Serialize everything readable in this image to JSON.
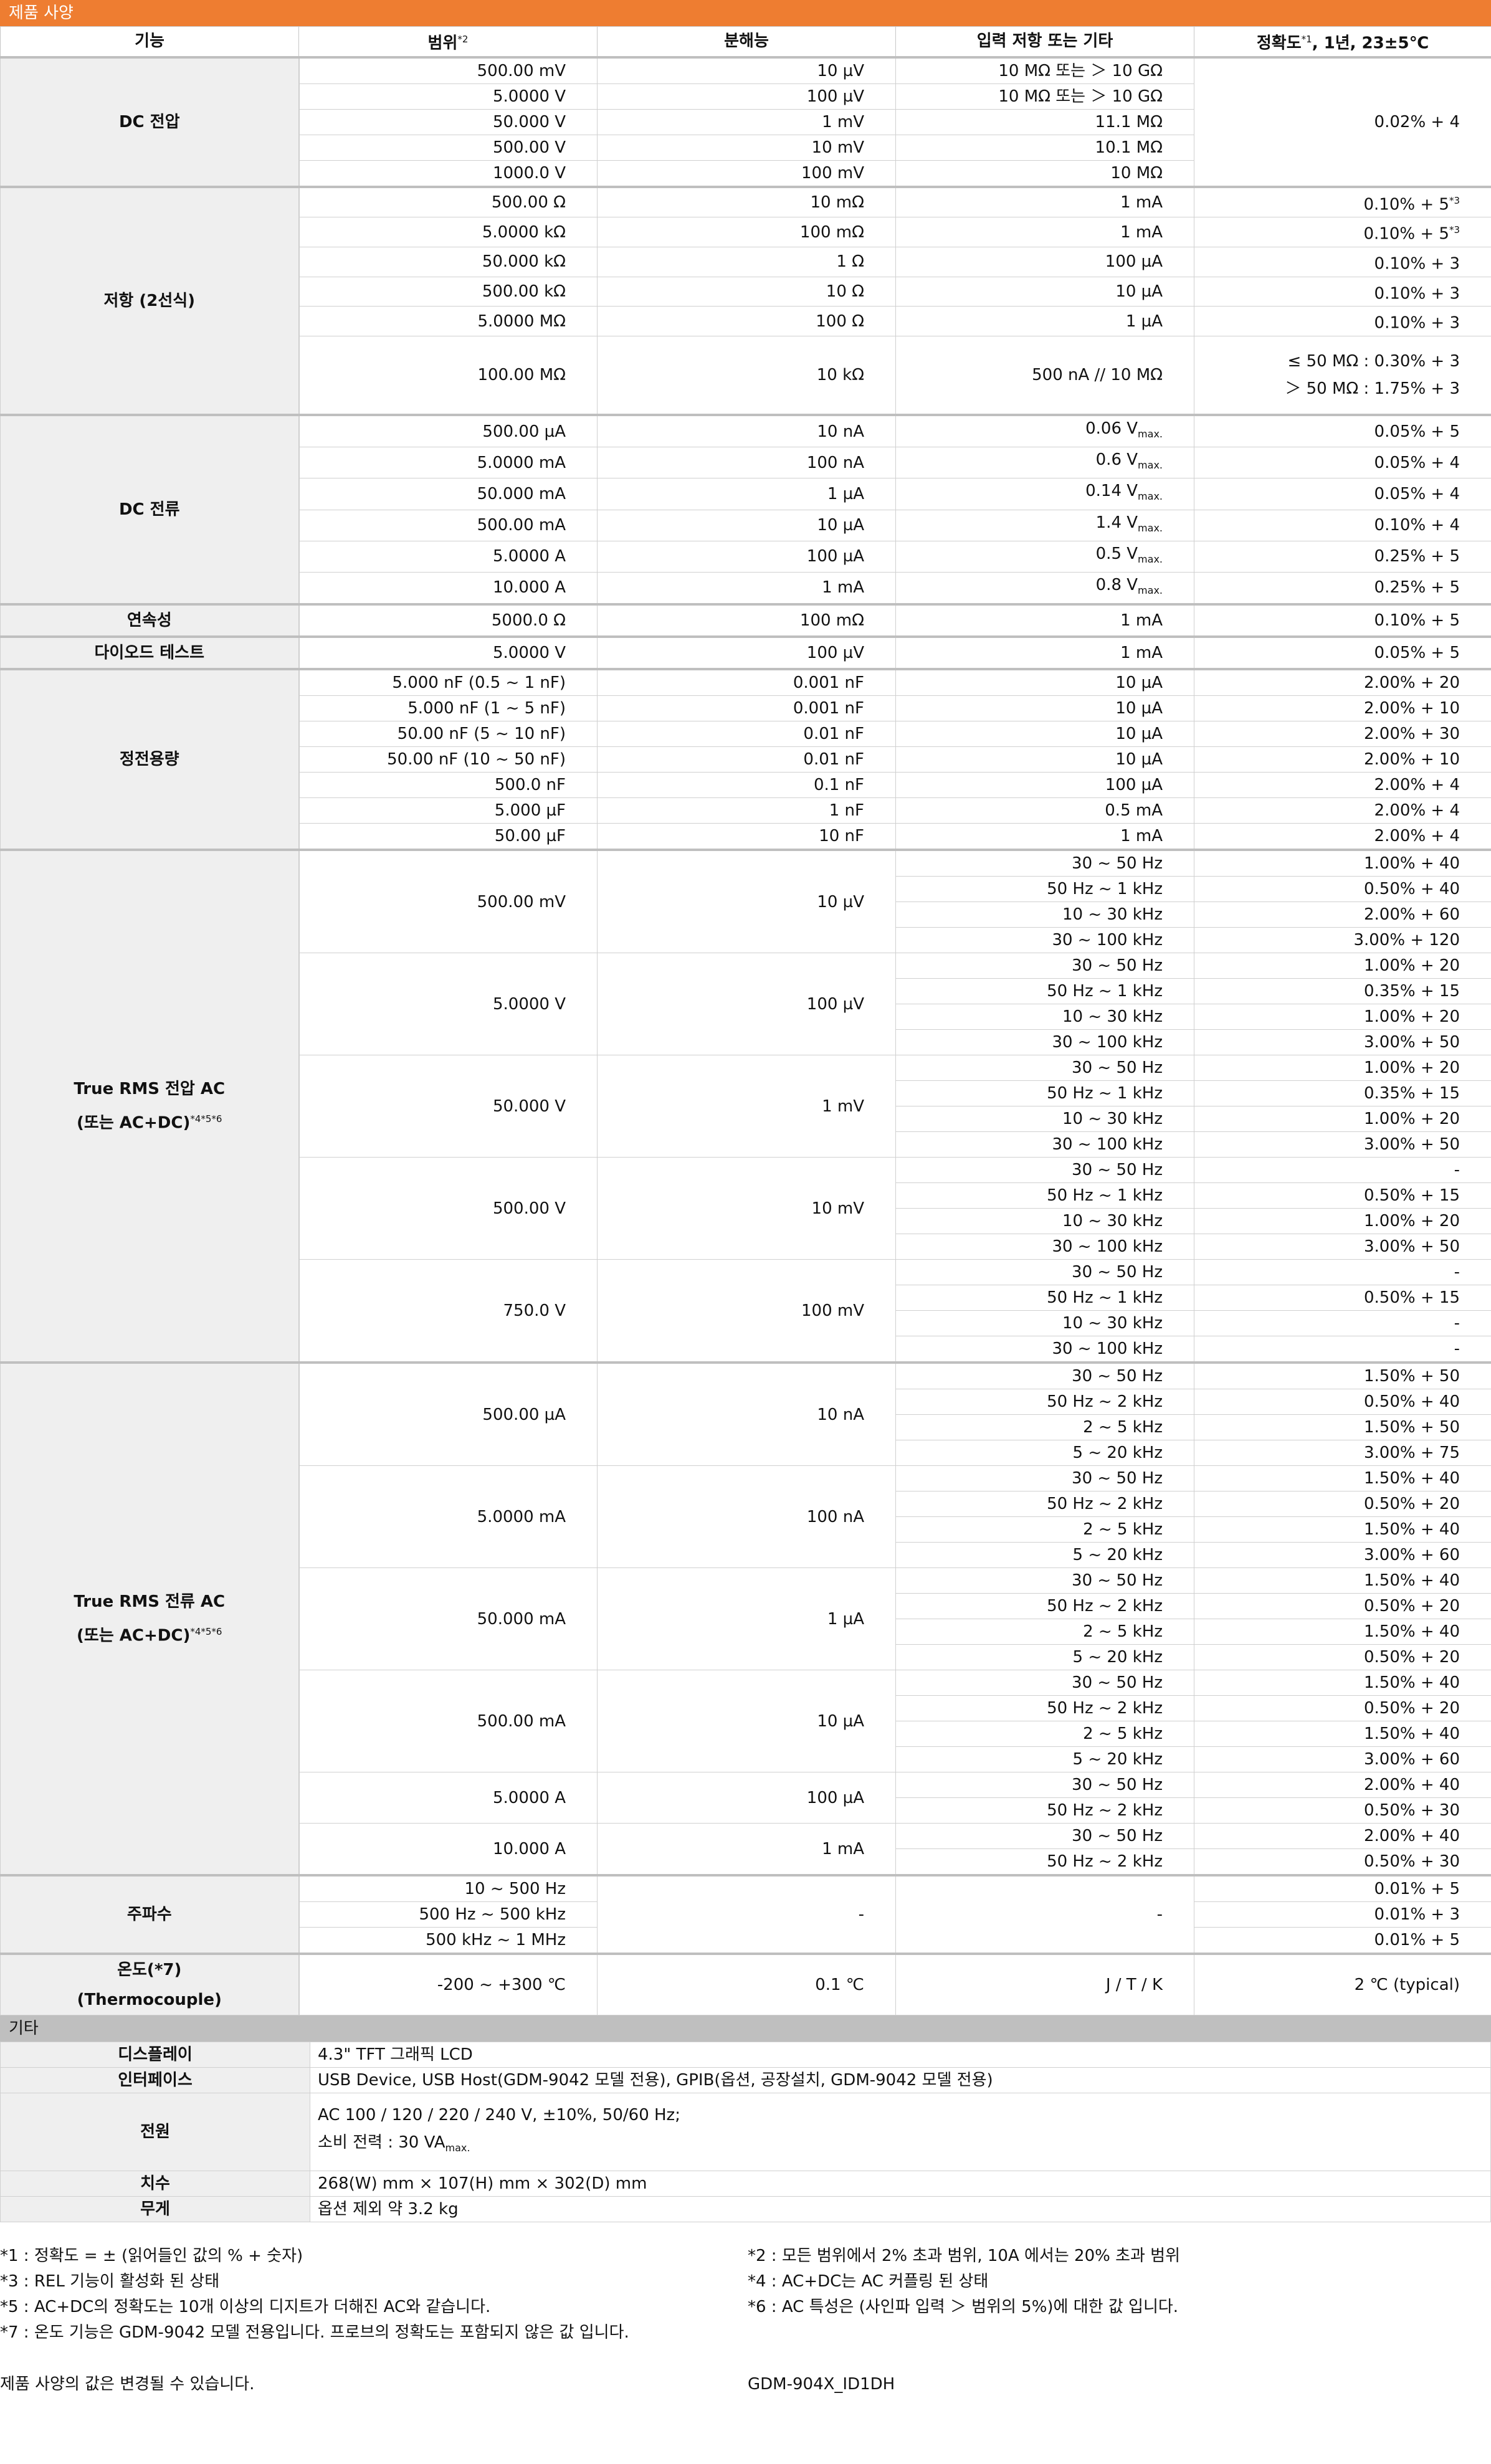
{
  "section_title": "제품 사양",
  "headers": {
    "function": "기능",
    "range": "범위",
    "range_note": "*2",
    "resolution": "분해능",
    "input": "입력 저항 또는 기타",
    "accuracy": "정확도",
    "accuracy_note": "*1",
    "accuracy_cond": ", 1년, 23±5℃"
  },
  "dcv": {
    "label": "DC 전압",
    "rows": [
      {
        "range": "500.00 mV",
        "res": "10 µV",
        "inp": "10 MΩ 또는 ＞ 10 GΩ"
      },
      {
        "range": "5.0000 V",
        "res": "100 µV",
        "inp": "10 MΩ 또는 ＞ 10 GΩ"
      },
      {
        "range": "50.000 V",
        "res": "1 mV",
        "inp": "11.1 MΩ"
      },
      {
        "range": "500.00 V",
        "res": "10 mV",
        "inp": "10.1 MΩ"
      },
      {
        "range": "1000.0 V",
        "res": "100 mV",
        "inp": "10 MΩ"
      }
    ],
    "accuracy": "0.02% + 4"
  },
  "resistance": {
    "label": "저항 (2선식)",
    "rows": [
      {
        "range": "500.00 Ω",
        "res": "10 mΩ",
        "inp": "1 mA",
        "acc": "0.10% + 5",
        "note": "*3"
      },
      {
        "range": "5.0000 kΩ",
        "res": "100 mΩ",
        "inp": "1 mA",
        "acc": "0.10% + 5",
        "note": "*3"
      },
      {
        "range": "50.000 kΩ",
        "res": "1 Ω",
        "inp": "100 µA",
        "acc": "0.10% + 3",
        "note": ""
      },
      {
        "range": "500.00 kΩ",
        "res": "10 Ω",
        "inp": "10 µA",
        "acc": "0.10% + 3",
        "note": ""
      },
      {
        "range": "5.0000 MΩ",
        "res": "100 Ω",
        "inp": "1 µA",
        "acc": "0.10% + 3",
        "note": ""
      }
    ],
    "big": {
      "range": "100.00 MΩ",
      "res": "10 kΩ",
      "inp": "500 nA // 10 MΩ",
      "acc1": "≤ 50 MΩ : 0.30% + 3",
      "acc2": "＞ 50 MΩ : 1.75% + 3"
    }
  },
  "dci": {
    "label": "DC 전류",
    "rows": [
      {
        "range": "500.00 µA",
        "res": "10 nA",
        "inp": "0.06 V",
        "acc": "0.05% + 5"
      },
      {
        "range": "5.0000 mA",
        "res": "100 nA",
        "inp": "0.6 V",
        "acc": "0.05% + 4"
      },
      {
        "range": "50.000 mA",
        "res": "1 µA",
        "inp": "0.14 V",
        "acc": "0.05% + 4"
      },
      {
        "range": "500.00 mA",
        "res": "10 µA",
        "inp": "1.4 V",
        "acc": "0.10% + 4"
      },
      {
        "range": "5.0000 A",
        "res": "100 µA",
        "inp": "0.5 V",
        "acc": "0.25% + 5"
      },
      {
        "range": "10.000 A",
        "res": "1 mA",
        "inp": "0.8 V",
        "acc": "0.25% + 5"
      }
    ],
    "vmax_sub": "max."
  },
  "continuity": {
    "label": "연속성",
    "range": "5000.0 Ω",
    "res": "100 mΩ",
    "inp": "1 mA",
    "acc": "0.10% + 5"
  },
  "diode": {
    "label": "다이오드 테스트",
    "range": "5.0000 V",
    "res": "100 µV",
    "inp": "1 mA",
    "acc": "0.05% + 5"
  },
  "capacitance": {
    "label": "정전용량",
    "rows": [
      {
        "range": "5.000 nF (0.5 ~ 1 nF)",
        "res": "0.001 nF",
        "inp": "10 µA",
        "acc": "2.00% + 20"
      },
      {
        "range": "5.000 nF (1 ~ 5 nF)",
        "res": "0.001 nF",
        "inp": "10 µA",
        "acc": "2.00% + 10"
      },
      {
        "range": "50.00 nF (5 ~ 10 nF)",
        "res": "0.01 nF",
        "inp": "10 µA",
        "acc": "2.00% + 30"
      },
      {
        "range": "50.00 nF (10 ~ 50 nF)",
        "res": "0.01 nF",
        "inp": "10 µA",
        "acc": "2.00% + 10"
      },
      {
        "range": "500.0 nF",
        "res": "0.1 nF",
        "inp": "100 µA",
        "acc": "2.00% + 4"
      },
      {
        "range": "5.000 µF",
        "res": "1 nF",
        "inp": "0.5 mA",
        "acc": "2.00% + 4"
      },
      {
        "range": "50.00 µF",
        "res": "10 nF",
        "inp": "1 mA",
        "acc": "2.00% + 4"
      }
    ]
  },
  "acv": {
    "label1": "True RMS 전압 AC",
    "label2": "(또는 AC+DC)",
    "notes": "*4*5*6",
    "groups": [
      {
        "range": "500.00 mV",
        "res": "10 µV",
        "rows": [
          [
            "30 ~ 50 Hz",
            "1.00% + 40"
          ],
          [
            "50 Hz ~ 1 kHz",
            "0.50% + 40"
          ],
          [
            "10 ~ 30 kHz",
            "2.00% + 60"
          ],
          [
            "30 ~ 100 kHz",
            "3.00% + 120"
          ]
        ]
      },
      {
        "range": "5.0000 V",
        "res": "100 µV",
        "rows": [
          [
            "30 ~ 50 Hz",
            "1.00% + 20"
          ],
          [
            "50 Hz ~ 1 kHz",
            "0.35% + 15"
          ],
          [
            "10 ~ 30 kHz",
            "1.00% + 20"
          ],
          [
            "30 ~ 100 kHz",
            "3.00% + 50"
          ]
        ]
      },
      {
        "range": "50.000 V",
        "res": "1 mV",
        "rows": [
          [
            "30 ~ 50 Hz",
            "1.00% + 20"
          ],
          [
            "50 Hz ~ 1 kHz",
            "0.35% + 15"
          ],
          [
            "10 ~ 30 kHz",
            "1.00% + 20"
          ],
          [
            "30 ~ 100 kHz",
            "3.00% + 50"
          ]
        ]
      },
      {
        "range": "500.00 V",
        "res": "10 mV",
        "rows": [
          [
            "30 ~ 50 Hz",
            "-"
          ],
          [
            "50 Hz ~ 1 kHz",
            "0.50% + 15"
          ],
          [
            "10 ~ 30 kHz",
            "1.00% + 20"
          ],
          [
            "30 ~ 100 kHz",
            "3.00% + 50"
          ]
        ]
      },
      {
        "range": "750.0 V",
        "res": "100 mV",
        "rows": [
          [
            "30 ~ 50 Hz",
            "-"
          ],
          [
            "50 Hz ~ 1 kHz",
            "0.50% + 15"
          ],
          [
            "10 ~ 30 kHz",
            "-"
          ],
          [
            "30 ~ 100 kHz",
            "-"
          ]
        ]
      }
    ]
  },
  "aci": {
    "label1": "True RMS 전류 AC",
    "label2": "(또는 AC+DC)",
    "notes": "*4*5*6",
    "groups": [
      {
        "range": "500.00 µA",
        "res": "10 nA",
        "rows": [
          [
            "30 ~ 50 Hz",
            "1.50% + 50"
          ],
          [
            "50 Hz ~ 2 kHz",
            "0.50% + 40"
          ],
          [
            "2 ~ 5 kHz",
            "1.50% + 50"
          ],
          [
            "5 ~ 20 kHz",
            "3.00% + 75"
          ]
        ]
      },
      {
        "range": "5.0000 mA",
        "res": "100 nA",
        "rows": [
          [
            "30 ~ 50 Hz",
            "1.50% + 40"
          ],
          [
            "50 Hz ~ 2 kHz",
            "0.50% + 20"
          ],
          [
            "2 ~ 5 kHz",
            "1.50% + 40"
          ],
          [
            "5 ~ 20 kHz",
            "3.00% + 60"
          ]
        ]
      },
      {
        "range": "50.000 mA",
        "res": "1 µA",
        "rows": [
          [
            "30 ~ 50 Hz",
            "1.50% + 40"
          ],
          [
            "50 Hz ~ 2 kHz",
            "0.50% + 20"
          ],
          [
            "2 ~ 5 kHz",
            "1.50% + 40"
          ],
          [
            "5 ~ 20 kHz",
            "0.50% + 20"
          ]
        ]
      },
      {
        "range": "500.00 mA",
        "res": "10 µA",
        "rows": [
          [
            "30 ~ 50 Hz",
            "1.50% + 40"
          ],
          [
            "50 Hz ~ 2 kHz",
            "0.50% + 20"
          ],
          [
            "2 ~ 5 kHz",
            "1.50% + 40"
          ],
          [
            "5 ~ 20 kHz",
            "3.00% + 60"
          ]
        ]
      },
      {
        "range": "5.0000 A",
        "res": "100 µA",
        "rows": [
          [
            "30 ~ 50 Hz",
            "2.00% + 40"
          ],
          [
            "50 Hz ~ 2 kHz",
            "0.50% + 30"
          ]
        ]
      },
      {
        "range": "10.000 A",
        "res": "1 mA",
        "rows": [
          [
            "30 ~ 50 Hz",
            "2.00% + 40"
          ],
          [
            "50 Hz ~ 2 kHz",
            "0.50% + 30"
          ]
        ]
      }
    ]
  },
  "frequency": {
    "label": "주파수",
    "rows": [
      [
        "10 ~ 500 Hz",
        "0.01% + 5"
      ],
      [
        "500 Hz ~ 500 kHz",
        "0.01% + 3"
      ],
      [
        "500 kHz ~ 1 MHz",
        "0.01% + 5"
      ]
    ],
    "res": "-",
    "inp": "-"
  },
  "temperature": {
    "label1": "온도(*7)",
    "label2": "(Thermocouple)",
    "range": "-200 ~ +300 ℃",
    "res": "0.1 ℃",
    "inp": "J / T / K",
    "acc": "2 ℃ (typical)"
  },
  "misc_title": "기타",
  "misc": {
    "display_label": "디스플레이",
    "display_value": "4.3\" TFT 그래픽 LCD",
    "interface_label": "인터페이스",
    "interface_value": "USB Device, USB Host(GDM-9042 모델 전용), GPIB(옵션, 공장설치, GDM-9042 모델 전용)",
    "power_label": "전원",
    "power_line1": "AC 100 / 120 / 220 / 240 V, ±10%, 50/60 Hz;",
    "power_line2": "소비 전력 : 30 VA",
    "power_sub": "max.",
    "dim_label": "치수",
    "dim_value": "268(W) mm × 107(H) mm × 302(D) mm",
    "weight_label": "무게",
    "weight_value": "옵션 제외 약 3.2 kg"
  },
  "footnotes": {
    "n1": "*1 : 정확도 = ± (읽어들인 값의 % + 숫자)",
    "n2": "*2 : 모든 범위에서 2% 초과 범위, 10A 에서는 20% 초과 범위",
    "n3": "*3 : REL 기능이 활성화 된 상태",
    "n4": "*4 : AC+DC는 AC 커플링 된 상태",
    "n5": "*5 : AC+DC의 정확도는 10개 이상의 디지트가 더해진 AC와 같습니다.",
    "n6": "*6 : AC 특성은 (사인파 입력 ＞ 범위의 5%)에 대한 값 입니다.",
    "n7": "*7 : 온도 기능은 GDM-9042 모델 전용입니다. 프로브의 정확도는 포함되지 않은 값 입니다."
  },
  "footer": {
    "disclaimer": "제품 사양의 값은 변경될 수 있습니다.",
    "doc_id": "GDM-904X_ID1DH"
  }
}
